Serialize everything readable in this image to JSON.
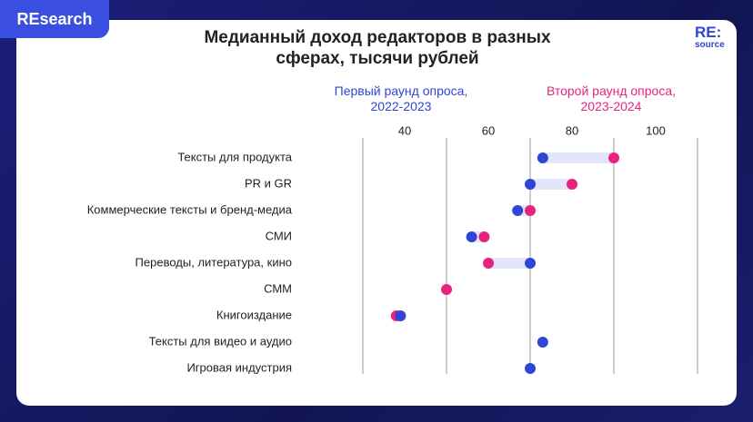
{
  "badge": "REsearch",
  "logo": {
    "top": "RE:",
    "bottom": "source"
  },
  "chart_data": {
    "type": "dumbbell",
    "title": "Медианный доход редакторов в разных сферах, тысячи рублей",
    "categories": [
      "Тексты для продукта",
      "PR и GR",
      "Коммерческие тексты и бренд-медиа",
      "СМИ",
      "Переводы, литература, кино",
      "СММ",
      "Книгоиздание",
      "Тексты для видео и аудио",
      "Игровая индустрия"
    ],
    "series": [
      {
        "name": "Первый раунд опроса, 2022-2023",
        "color": "#2f45d4",
        "values": [
          73,
          70,
          67,
          56,
          70,
          null,
          39,
          73,
          70
        ]
      },
      {
        "name": "Второй раунд опроса, 2023-2024",
        "color": "#e8237e",
        "values": [
          90,
          80,
          70,
          59,
          60,
          50,
          38,
          null,
          null
        ]
      }
    ],
    "xlim": [
      30,
      110
    ],
    "xticks": [
      40,
      60,
      80,
      100
    ],
    "xgrid": [
      30,
      50,
      70,
      90,
      110
    ],
    "connector_color": "#e3e6fb"
  }
}
